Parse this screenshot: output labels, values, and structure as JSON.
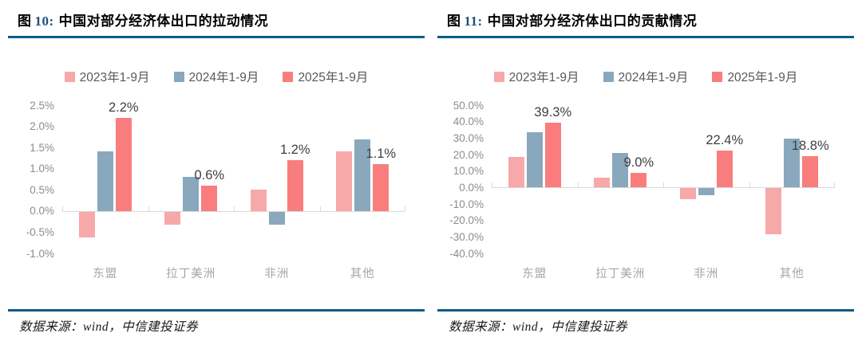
{
  "colors": {
    "accent_rule": "#0E5A86",
    "fig_num_text": "#1F4E79",
    "series_2023": "#F7A8A8",
    "series_2024": "#89A8BD",
    "series_2025": "#FA7D7D",
    "axis_line": "#D9D9D9",
    "axis_tick_text": "#8C8C8C",
    "x_category_text": "#A6A6A6",
    "legend_text": "#595959",
    "data_label_text": "#3F3F3F"
  },
  "figures": [
    {
      "fig_char": "图",
      "fig_num": "10:",
      "title": "中国对部分经济体出口的拉动情况",
      "source_note": "数据来源：wind，中信建投证券"
    },
    {
      "fig_char": "图",
      "fig_num": "11:",
      "title": "中国对部分经济体出口的贡献情况",
      "source_note": "数据来源：wind，中信建投证券"
    }
  ],
  "chart_data": [
    {
      "type": "bar",
      "title": "中国对部分经济体出口的拉动情况",
      "categories": [
        "东盟",
        "拉丁美洲",
        "非洲",
        "其他"
      ],
      "series": [
        {
          "name": "2023年1-9月",
          "color": "#F7A8A8",
          "values": [
            -0.6,
            -0.3,
            0.5,
            1.4
          ]
        },
        {
          "name": "2024年1-9月",
          "color": "#89A8BD",
          "values": [
            1.4,
            0.8,
            -0.3,
            1.7
          ]
        },
        {
          "name": "2025年1-9月",
          "color": "#FA7D7D",
          "values": [
            2.2,
            0.6,
            1.2,
            1.1
          ],
          "data_labels": [
            "2.2%",
            "0.6%",
            "1.2%",
            "1.1%"
          ]
        }
      ],
      "legend": [
        "2023年1-9月",
        "2024年1-9月",
        "2025年1-9月"
      ],
      "legend_position": "top",
      "grid": false,
      "xlabel": "",
      "ylabel": "",
      "ylim": [
        -1.0,
        2.5
      ],
      "y_tick_values": [
        2.5,
        2.0,
        1.5,
        1.0,
        0.5,
        0.0,
        -0.5,
        -1.0
      ],
      "y_ticks": [
        "2.5%",
        "2.0%",
        "1.5%",
        "1.0%",
        "0.5%",
        "0.0%",
        "-0.5%",
        "-1.0%"
      ]
    },
    {
      "type": "bar",
      "title": "中国对部分经济体出口的贡献情况",
      "categories": [
        "东盟",
        "拉丁美洲",
        "非洲",
        "其他"
      ],
      "series": [
        {
          "name": "2023年1-9月",
          "color": "#F7A8A8",
          "values": [
            18.5,
            6.0,
            -6.5,
            -28.0
          ]
        },
        {
          "name": "2024年1-9月",
          "color": "#89A8BD",
          "values": [
            33.5,
            21.0,
            -4.0,
            29.5
          ]
        },
        {
          "name": "2025年1-9月",
          "color": "#FA7D7D",
          "values": [
            39.3,
            9.0,
            22.4,
            18.8
          ],
          "data_labels": [
            "39.3%",
            "9.0%",
            "22.4%",
            "18.8%"
          ]
        }
      ],
      "legend": [
        "2023年1-9月",
        "2024年1-9月",
        "2025年1-9月"
      ],
      "legend_position": "top",
      "grid": false,
      "xlabel": "",
      "ylabel": "",
      "ylim": [
        -40,
        50
      ],
      "y_tick_values": [
        50,
        40,
        30,
        20,
        10,
        0,
        -10,
        -20,
        -30,
        -40
      ],
      "y_ticks": [
        "50.0%",
        "40.0%",
        "30.0%",
        "20.0%",
        "10.0%",
        "0.0%",
        "-10.0%",
        "-20.0%",
        "-30.0%",
        "-40.0%"
      ]
    }
  ]
}
